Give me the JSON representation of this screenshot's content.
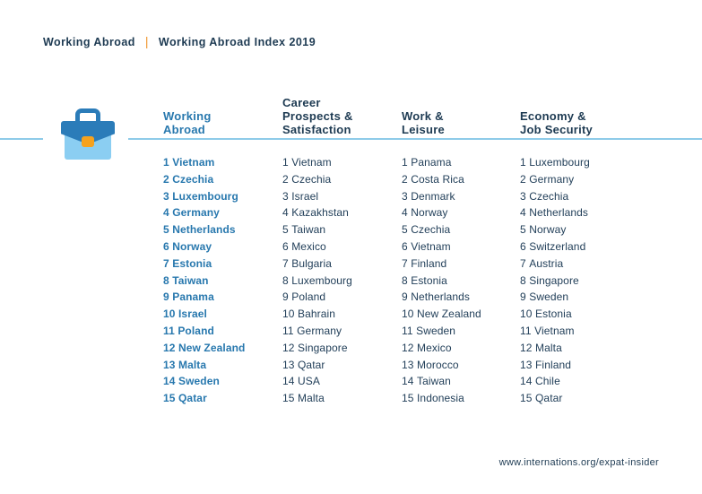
{
  "breadcrumb": {
    "section": "Working Abroad",
    "separator": "|",
    "title": "Working Abroad Index 2019"
  },
  "footer": {
    "url": "www.internations.org/expat-insider"
  },
  "icon": "briefcase-icon",
  "colors": {
    "navy_text": "#1d3a52",
    "highlight_blue": "#2878ae",
    "divider_light_blue": "#8ecbe9",
    "briefcase_dark_blue": "#2b7cb9",
    "briefcase_light_blue": "#8bcef2",
    "clasp_orange": "#f6a21e",
    "separator_orange": "#f0962e",
    "background": "#ffffff"
  },
  "table": {
    "columns": [
      {
        "id": "working-abroad",
        "header": "Working Abroad",
        "header_lines": [
          "Working",
          "Abroad"
        ],
        "highlight": true,
        "ranking": [
          {
            "rank": "1",
            "country": "Vietnam"
          },
          {
            "rank": "2",
            "country": "Czechia"
          },
          {
            "rank": "3",
            "country": "Luxembourg"
          },
          {
            "rank": "4",
            "country": "Germany"
          },
          {
            "rank": "5",
            "country": "Netherlands"
          },
          {
            "rank": "6",
            "country": "Norway"
          },
          {
            "rank": "7",
            "country": "Estonia"
          },
          {
            "rank": "8",
            "country": "Taiwan"
          },
          {
            "rank": "9",
            "country": "Panama"
          },
          {
            "rank": "10",
            "country": "Israel"
          },
          {
            "rank": "11",
            "country": "Poland"
          },
          {
            "rank": "12",
            "country": "New Zealand"
          },
          {
            "rank": "13",
            "country": "Malta"
          },
          {
            "rank": "14",
            "country": "Sweden"
          },
          {
            "rank": "15",
            "country": "Qatar"
          }
        ]
      },
      {
        "id": "career-prospects-satisfaction",
        "header": "Career Prospects & Satisfaction",
        "header_lines": [
          "Career",
          "Prospects &",
          "Satisfaction"
        ],
        "highlight": false,
        "ranking": [
          {
            "rank": "1",
            "country": "Vietnam"
          },
          {
            "rank": "2",
            "country": "Czechia"
          },
          {
            "rank": "3",
            "country": "Israel"
          },
          {
            "rank": "4",
            "country": "Kazakhstan"
          },
          {
            "rank": "5",
            "country": "Taiwan"
          },
          {
            "rank": "6",
            "country": "Mexico"
          },
          {
            "rank": "7",
            "country": "Bulgaria"
          },
          {
            "rank": "8",
            "country": "Luxembourg"
          },
          {
            "rank": "9",
            "country": "Poland"
          },
          {
            "rank": "10",
            "country": "Bahrain"
          },
          {
            "rank": "11",
            "country": "Germany"
          },
          {
            "rank": "12",
            "country": "Singapore"
          },
          {
            "rank": "13",
            "country": "Qatar"
          },
          {
            "rank": "14",
            "country": "USA"
          },
          {
            "rank": "15",
            "country": "Malta"
          }
        ]
      },
      {
        "id": "work-leisure",
        "header": "Work & Leisure",
        "header_lines": [
          "Work &",
          "Leisure"
        ],
        "highlight": false,
        "ranking": [
          {
            "rank": "1",
            "country": "Panama"
          },
          {
            "rank": "2",
            "country": "Costa Rica"
          },
          {
            "rank": "3",
            "country": "Denmark"
          },
          {
            "rank": "4",
            "country": "Norway"
          },
          {
            "rank": "5",
            "country": "Czechia"
          },
          {
            "rank": "6",
            "country": "Vietnam"
          },
          {
            "rank": "7",
            "country": "Finland"
          },
          {
            "rank": "8",
            "country": "Estonia"
          },
          {
            "rank": "9",
            "country": "Netherlands"
          },
          {
            "rank": "10",
            "country": "New Zealand"
          },
          {
            "rank": "11",
            "country": "Sweden"
          },
          {
            "rank": "12",
            "country": "Mexico"
          },
          {
            "rank": "13",
            "country": "Morocco"
          },
          {
            "rank": "14",
            "country": "Taiwan"
          },
          {
            "rank": "15",
            "country": "Indonesia"
          }
        ]
      },
      {
        "id": "economy-job-security",
        "header": "Economy & Job Security",
        "header_lines": [
          "Economy &",
          "Job Security"
        ],
        "highlight": false,
        "ranking": [
          {
            "rank": "1",
            "country": "Luxembourg"
          },
          {
            "rank": "2",
            "country": "Germany"
          },
          {
            "rank": "3",
            "country": "Czechia"
          },
          {
            "rank": "4",
            "country": "Netherlands"
          },
          {
            "rank": "5",
            "country": "Norway"
          },
          {
            "rank": "6",
            "country": "Switzerland"
          },
          {
            "rank": "7",
            "country": "Austria"
          },
          {
            "rank": "8",
            "country": "Singapore"
          },
          {
            "rank": "9",
            "country": "Sweden"
          },
          {
            "rank": "10",
            "country": "Estonia"
          },
          {
            "rank": "11",
            "country": "Vietnam"
          },
          {
            "rank": "12",
            "country": "Malta"
          },
          {
            "rank": "13",
            "country": "Finland"
          },
          {
            "rank": "14",
            "country": "Chile"
          },
          {
            "rank": "15",
            "country": "Qatar"
          }
        ]
      }
    ]
  }
}
